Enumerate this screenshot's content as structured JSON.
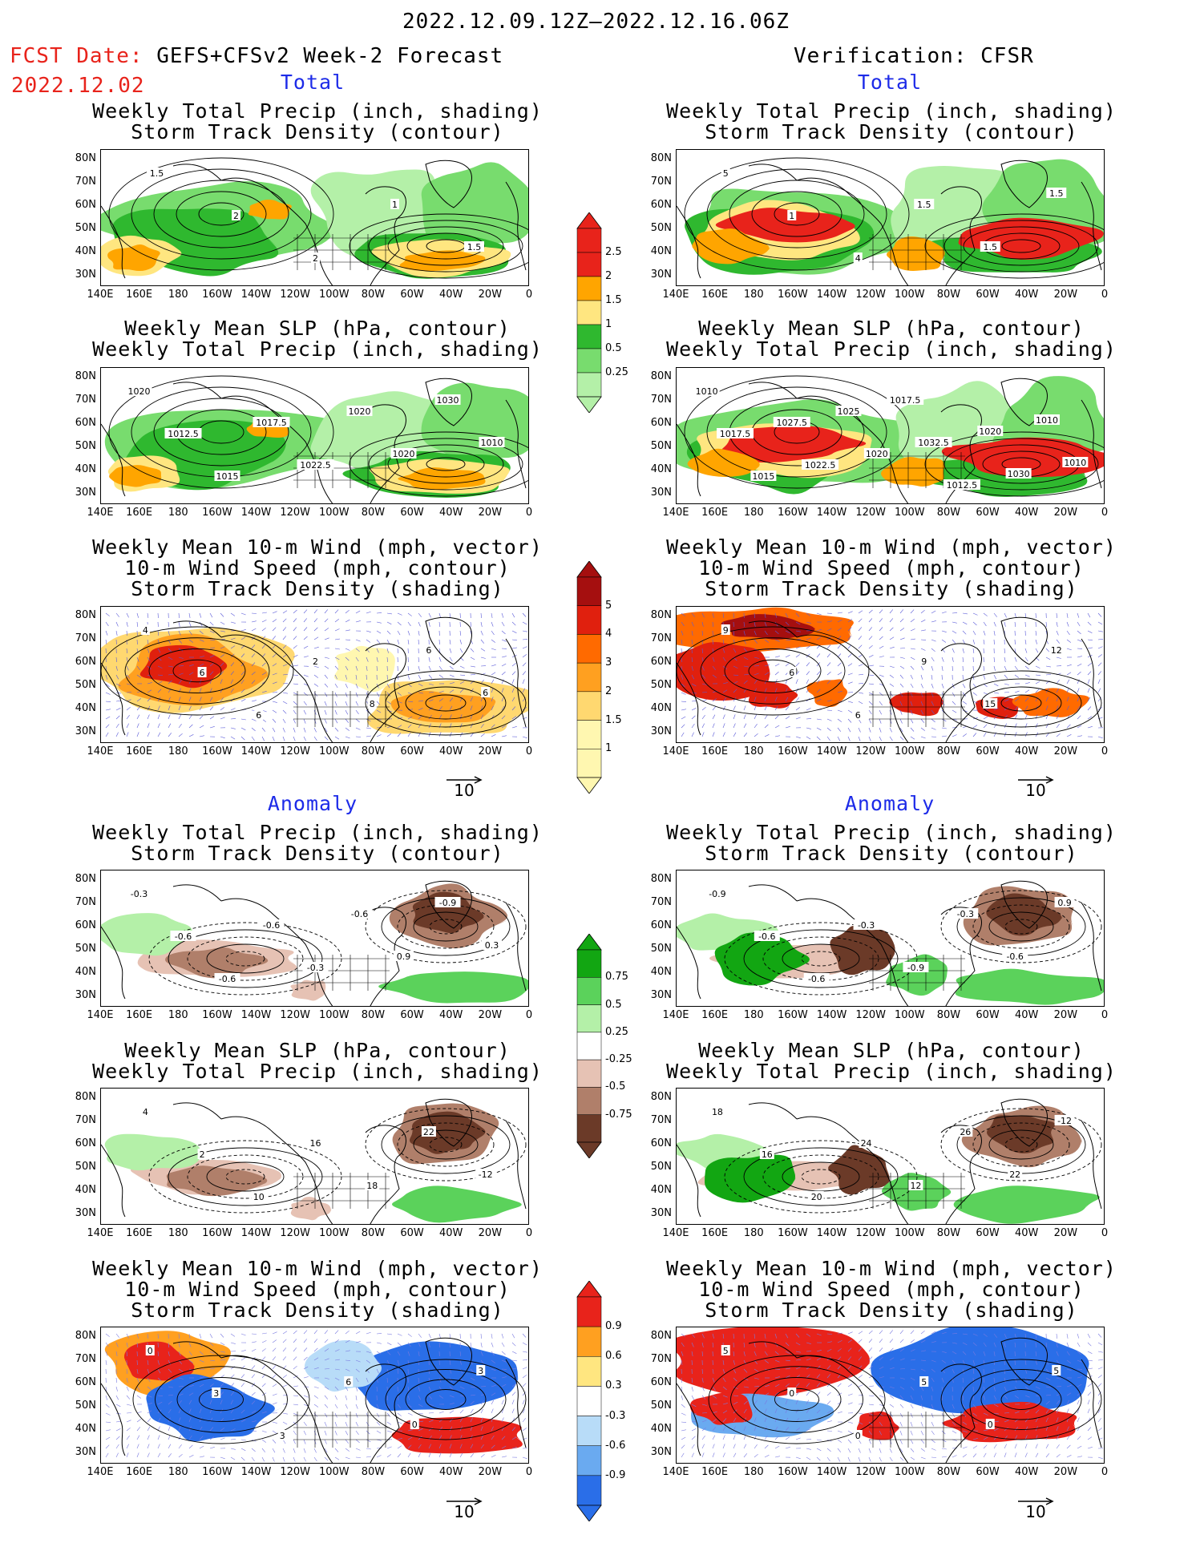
{
  "header": {
    "date_range": "2022.12.09.12Z—2022.12.16.06Z",
    "fcst_label": "FCST Date:",
    "fcst_model": "GEFS+CFSv2 Week-2 Forecast",
    "fcst_date": "2022.12.02",
    "verification": "Verification: CFSR"
  },
  "sections": {
    "total": "Total",
    "anomaly": "Anomaly"
  },
  "titles": {
    "precip_storm": "Weekly Total Precip (inch, shading)\nStorm Track Density (contour)",
    "slp_precip": "Weekly Mean SLP (hPa, contour)\nWeekly Total Precip (inch, shading)",
    "wind_storm": "Weekly Mean 10-m Wind (mph, vector)\n10-m Wind Speed (mph, contour)\nStorm Track Density (shading)"
  },
  "axes": {
    "lat": [
      "80N",
      "70N",
      "60N",
      "50N",
      "40N",
      "30N"
    ],
    "lon": [
      "140E",
      "160E",
      "180",
      "160W",
      "140W",
      "120W",
      "100W",
      "80W",
      "60W",
      "40W",
      "20W",
      "0"
    ]
  },
  "colorbars": {
    "precip_total": [
      "2.5",
      "2",
      "1.5",
      "1",
      "0.5",
      "0.25"
    ],
    "storm_total": [
      "5",
      "4",
      "3",
      "2",
      "1.5",
      "1"
    ],
    "precip_anom": [
      "0.75",
      "0.5",
      "0.25",
      "-0.25",
      "-0.5",
      "-0.75"
    ],
    "storm_anom": [
      "0.9",
      "0.6",
      "0.3",
      "-0.3",
      "-0.6",
      "-0.9"
    ]
  },
  "vector_ref": "10",
  "colors": {
    "precip": [
      "#b4f0a8",
      "#78dc6e",
      "#2fb82f",
      "#ffe680",
      "#ffa500",
      "#e8231b"
    ],
    "storm": [
      "#fff7b0",
      "#ffd870",
      "#ffa020",
      "#ff6a00",
      "#e0200e",
      "#a50f0f"
    ],
    "anom_pos": [
      "#b4f0a8",
      "#5bd25b",
      "#12a612"
    ],
    "anom_neg": [
      "#e6c2b4",
      "#b07f6a",
      "#6b3a28"
    ],
    "storm_anom_pos": [
      "#ffe680",
      "#ffa020",
      "#e8231b"
    ],
    "storm_anom_neg": [
      "#b8dcf8",
      "#6aaaf0",
      "#2a6ee8"
    ]
  },
  "contour_labels": {
    "p1_left": [
      "1.5",
      "2",
      "2",
      "1",
      "1.5"
    ],
    "p1_right": [
      "5",
      "1",
      "4",
      "1.5",
      "1.5",
      "1.5"
    ],
    "p2_left": [
      "1020",
      "1012.5",
      "1015",
      "1017.5",
      "1022.5",
      "1020",
      "1020",
      "1030",
      "1010"
    ],
    "p2_right": [
      "1010",
      "1017.5",
      "1015",
      "1027.5",
      "1022.5",
      "1025",
      "1020",
      "1017.5",
      "1032.5",
      "1012.5",
      "1020",
      "1030",
      "1010",
      "1010"
    ],
    "p3_left": [
      "4",
      "6",
      "6",
      "2",
      "8",
      "6",
      "6"
    ],
    "p3_right": [
      "9",
      "6",
      "6",
      "9",
      "15",
      "12"
    ],
    "p4_left": [
      "-0.3",
      "-0.6",
      "-0.6",
      "-0.6",
      "-0.3",
      "-0.6",
      "0.9",
      "-0.9",
      "0.3"
    ],
    "p4_right": [
      "-0.9",
      "-0.6",
      "-0.6",
      "-0.3",
      "-0.9",
      "-0.3",
      "-0.6",
      "0.9"
    ],
    "p5_left": [
      "4",
      "2",
      "10",
      "16",
      "18",
      "22",
      "-12"
    ],
    "p5_right": [
      "18",
      "16",
      "20",
      "24",
      "12",
      "26",
      "22",
      "-12"
    ],
    "p6_left": [
      "0",
      "3",
      "3",
      "6",
      "0",
      "3"
    ],
    "p6_right": [
      "5",
      "0",
      "0",
      "5",
      "0",
      "5"
    ]
  }
}
